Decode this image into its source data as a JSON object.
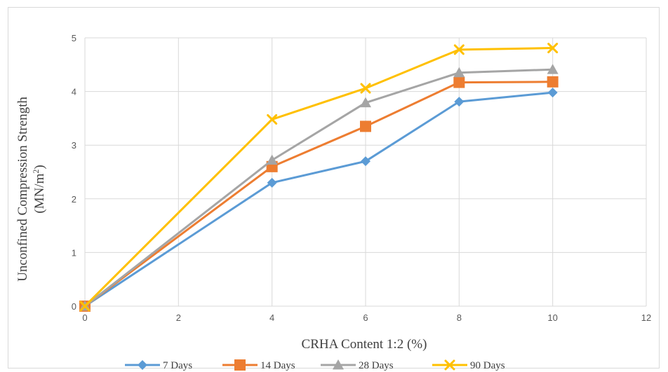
{
  "chart_data": {
    "type": "line",
    "x": [
      0,
      4,
      6,
      8,
      10
    ],
    "series": [
      {
        "name": "7 Days",
        "values": [
          0,
          2.3,
          2.7,
          3.81,
          3.98
        ],
        "color": "#5b9bd5",
        "marker": "diamond"
      },
      {
        "name": "14 Days",
        "values": [
          0,
          2.6,
          3.35,
          4.17,
          4.18
        ],
        "color": "#ed7d31",
        "marker": "square"
      },
      {
        "name": "28 Days",
        "values": [
          0,
          2.72,
          3.79,
          4.35,
          4.41
        ],
        "color": "#a5a5a5",
        "marker": "triangle"
      },
      {
        "name": "90 Days",
        "values": [
          0,
          3.48,
          4.06,
          4.78,
          4.81
        ],
        "color": "#ffc000",
        "marker": "x"
      }
    ],
    "xlabel": "CRHA Content 1:2 (%)",
    "ylabel_line1": "Unconfined Compression Strength",
    "ylabel_line2_base": "(MN/m",
    "ylabel_line2_sup": "2",
    "ylabel_line2_end": ")",
    "xlim": [
      0,
      12
    ],
    "ylim": [
      0,
      5
    ],
    "xticks": [
      "0",
      "2",
      "4",
      "6",
      "8",
      "10",
      "12"
    ],
    "yticks": [
      "0",
      "1",
      "2",
      "3",
      "4",
      "5"
    ],
    "grid": true,
    "legend_position": "bottom"
  }
}
